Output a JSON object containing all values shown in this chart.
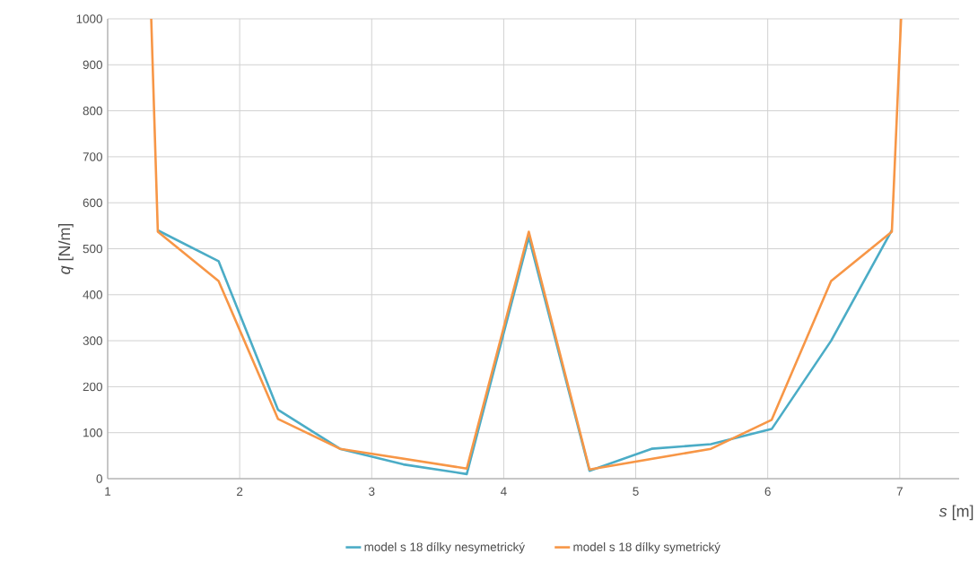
{
  "chart_data": {
    "type": "line",
    "xlabel": "*s* [m]",
    "ylabel": "*q* [N/m]",
    "xlim": [
      1,
      7.45
    ],
    "xticks": [
      1,
      2,
      3,
      4,
      5,
      6,
      7
    ],
    "ylim": [
      0,
      1000
    ],
    "yticks": [
      0,
      100,
      200,
      300,
      400,
      500,
      600,
      700,
      800,
      900,
      1000
    ],
    "grid": true,
    "legend": "bottom",
    "marker": "none",
    "line_style": "solid",
    "series": [
      {
        "name": "model s 18 dílky nesymetrický",
        "color": "#4bacc6",
        "x": [
          1.38,
          1.84,
          2.29,
          2.76,
          3.24,
          3.72,
          4.19,
          4.65,
          5.12,
          5.57,
          6.03,
          6.48,
          6.94
        ],
        "values": [
          540,
          473,
          150,
          65,
          31,
          10,
          525,
          17,
          65,
          75,
          108,
          300,
          540
        ]
      },
      {
        "name": "model s 18 dílky symetrický",
        "color": "#f79646",
        "x": [
          1.33,
          1.38,
          1.84,
          2.29,
          2.76,
          3.72,
          4.19,
          4.65,
          5.57,
          6.03,
          6.48,
          6.94,
          7.01
        ],
        "values": [
          1000,
          537,
          430,
          130,
          65,
          22,
          537,
          20,
          65,
          128,
          430,
          537,
          1000
        ]
      }
    ]
  }
}
